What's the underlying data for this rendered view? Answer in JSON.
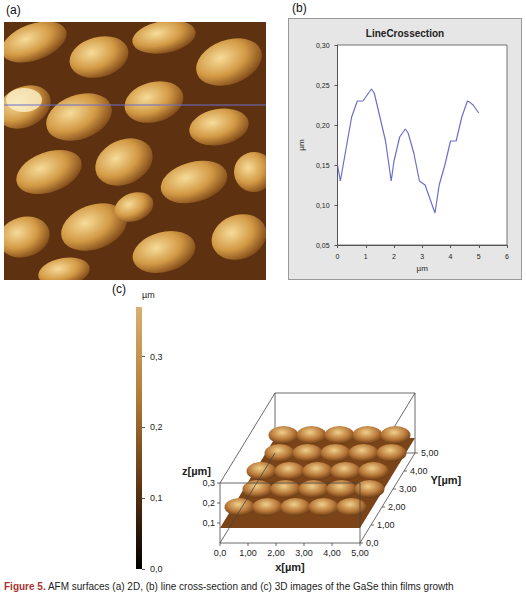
{
  "figure": {
    "caption_label": "Figure 5.",
    "caption": "AFM surfaces (a) 2D, (b) line cross-section and (c) 3D images of the GaSe thin films growth",
    "panels": [
      {
        "label": "(a)"
      },
      {
        "label": "(b)"
      },
      {
        "label": "(c)",
        "colorbar": {
          "label": "µm",
          "range": [
            0,
            0.37
          ],
          "ticks": [
            {
              "value": 0,
              "label": "0,0"
            },
            {
              "value": 0.1,
              "label": "0,1"
            },
            {
              "value": 0.2,
              "label": "0,2"
            },
            {
              "value": 0.3,
              "label": "0,3"
            }
          ]
        },
        "z_label": "z[µm]",
        "x_label": "x[µm]",
        "y_label": "Y[µm]",
        "zlim": [
          0,
          0.3
        ],
        "zticks": [
          {
            "value": 0.1,
            "label": "0,1"
          },
          {
            "value": 0.2,
            "label": "0,2"
          },
          {
            "value": 0.3,
            "label": "0,3"
          }
        ],
        "xlim": [
          0,
          5
        ],
        "xticks": [
          {
            "value": 0,
            "label": "0,0"
          },
          {
            "value": 1,
            "label": "1,00"
          },
          {
            "value": 2,
            "label": "2,00"
          },
          {
            "value": 3,
            "label": "3,00"
          },
          {
            "value": 4,
            "label": "4,00"
          },
          {
            "value": 5,
            "label": "5,00"
          }
        ],
        "ylim": [
          0,
          5
        ],
        "yticks": [
          {
            "value": 0,
            "label": "0,0"
          },
          {
            "value": 1,
            "label": "1,00"
          },
          {
            "value": 2,
            "label": "2,00"
          },
          {
            "value": 3,
            "label": "3,00"
          },
          {
            "value": 4,
            "label": "4,00"
          },
          {
            "value": 5,
            "label": "5,00"
          }
        ]
      }
    ]
  },
  "chart_data": {
    "type": "line",
    "title": "LineCrossection",
    "x": [
      0,
      0.1,
      0.3,
      0.5,
      0.7,
      0.9,
      1.0,
      1.2,
      1.3,
      1.5,
      1.7,
      1.9,
      2.0,
      2.2,
      2.4,
      2.5,
      2.7,
      2.9,
      3.1,
      3.3,
      3.45,
      3.6,
      3.8,
      4.0,
      4.2,
      4.4,
      4.6,
      4.7,
      4.8,
      4.9,
      5.0
    ],
    "values": [
      0.15,
      0.13,
      0.17,
      0.21,
      0.23,
      0.23,
      0.235,
      0.245,
      0.24,
      0.21,
      0.18,
      0.13,
      0.155,
      0.185,
      0.195,
      0.19,
      0.165,
      0.13,
      0.125,
      0.105,
      0.09,
      0.125,
      0.15,
      0.18,
      0.18,
      0.21,
      0.23,
      0.228,
      0.225,
      0.22,
      0.215
    ],
    "color": "#6b6fc9",
    "xlabel": "µm",
    "ylabel": "µm",
    "xlim": [
      0,
      6
    ],
    "xticks": [
      0,
      1,
      2,
      3,
      4,
      5,
      6
    ],
    "ylim": [
      0.05,
      0.3
    ],
    "yticks": [
      {
        "value": 0.05,
        "label": "0,05"
      },
      {
        "value": 0.1,
        "label": "0,10"
      },
      {
        "value": 0.15,
        "label": "0,15"
      },
      {
        "value": 0.2,
        "label": "0,20"
      },
      {
        "value": 0.25,
        "label": "0,25"
      },
      {
        "value": 0.3,
        "label": "0,30"
      }
    ],
    "grid": false
  }
}
